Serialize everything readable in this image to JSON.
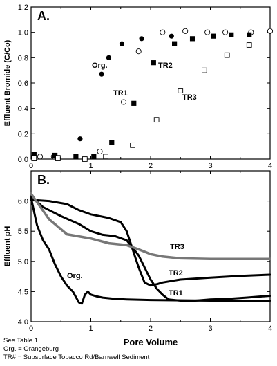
{
  "chart_data": [
    {
      "type": "scatter",
      "panel_label": "A.",
      "title": "",
      "xlabel": "",
      "ylabel": "Effluent Bromide (C/Co)",
      "xlim": [
        0,
        4
      ],
      "ylim": [
        0,
        1.2
      ],
      "xticks": [
        "0",
        "1",
        "2",
        "3",
        "4"
      ],
      "yticks": [
        "0.0",
        "0.2",
        "0.4",
        "0.6",
        "0.8",
        "1.0",
        "1.2"
      ],
      "grid": false,
      "series": [
        {
          "name": "Org.",
          "marker": "filled-circle",
          "points": [
            [
              0.82,
              0.16
            ],
            [
              1.18,
              0.67
            ],
            [
              1.3,
              0.8
            ],
            [
              1.52,
              0.91
            ],
            [
              1.85,
              0.95
            ],
            [
              2.35,
              0.97
            ]
          ]
        },
        {
          "name": "TR1",
          "marker": "open-circle",
          "points": [
            [
              0.15,
              0.02
            ],
            [
              0.38,
              0.02
            ],
            [
              1.15,
              0.06
            ],
            [
              1.55,
              0.45
            ],
            [
              1.8,
              0.85
            ],
            [
              2.2,
              1.0
            ],
            [
              2.58,
              1.01
            ],
            [
              2.95,
              1.0
            ],
            [
              3.25,
              1.0
            ],
            [
              3.68,
              1.0
            ],
            [
              4.0,
              1.01
            ]
          ]
        },
        {
          "name": "TR2",
          "marker": "filled-square",
          "points": [
            [
              0.05,
              0.04
            ],
            [
              0.4,
              0.03
            ],
            [
              0.75,
              0.02
            ],
            [
              1.05,
              0.02
            ],
            [
              1.35,
              0.13
            ],
            [
              1.72,
              0.44
            ],
            [
              2.05,
              0.76
            ],
            [
              2.4,
              0.91
            ],
            [
              2.7,
              0.95
            ],
            [
              3.05,
              0.97
            ],
            [
              3.35,
              0.98
            ],
            [
              3.65,
              0.98
            ]
          ]
        },
        {
          "name": "TR3",
          "marker": "open-square",
          "points": [
            [
              0.05,
              0.01
            ],
            [
              0.45,
              0.01
            ],
            [
              0.9,
              0.0
            ],
            [
              1.25,
              0.02
            ],
            [
              1.7,
              0.11
            ],
            [
              2.1,
              0.31
            ],
            [
              2.5,
              0.54
            ],
            [
              2.9,
              0.7
            ],
            [
              3.28,
              0.82
            ],
            [
              3.65,
              0.9
            ]
          ]
        }
      ],
      "annotations": [
        "Org.",
        "TR1",
        "TR2",
        "TR3"
      ]
    },
    {
      "type": "line",
      "panel_label": "B.",
      "title": "",
      "xlabel": "Pore Volume",
      "ylabel": "Effluent pH",
      "xlim": [
        0,
        4
      ],
      "ylim": [
        4.0,
        6.5
      ],
      "xticks": [
        "0",
        "1",
        "2",
        "3",
        "4"
      ],
      "yticks": [
        "4.0",
        "4.5",
        "5.0",
        "5.5",
        "6.0"
      ],
      "grid": false,
      "series": [
        {
          "name": "Org.",
          "color": "#000000",
          "x": [
            0,
            0.1,
            0.2,
            0.3,
            0.4,
            0.5,
            0.6,
            0.7,
            0.8,
            0.85,
            0.9,
            0.95,
            1.0,
            1.1,
            1.2,
            1.4,
            1.6,
            2.0,
            3.0,
            4.0
          ],
          "y": [
            6.05,
            5.6,
            5.35,
            5.2,
            4.95,
            4.75,
            4.6,
            4.5,
            4.32,
            4.3,
            4.45,
            4.5,
            4.45,
            4.42,
            4.4,
            4.38,
            4.37,
            4.36,
            4.35,
            4.35
          ]
        },
        {
          "name": "TR1",
          "color": "#000000",
          "x": [
            0,
            0.2,
            0.5,
            0.8,
            1.0,
            1.2,
            1.4,
            1.6,
            1.8,
            1.9,
            2.0,
            2.1,
            2.2,
            2.3,
            2.5,
            2.75,
            3.0,
            3.3,
            3.6,
            4.0
          ],
          "y": [
            6.08,
            5.9,
            5.75,
            5.62,
            5.5,
            5.44,
            5.42,
            5.35,
            5.1,
            4.9,
            4.7,
            4.55,
            4.45,
            4.37,
            4.35,
            4.35,
            4.37,
            4.38,
            4.4,
            4.43
          ]
        },
        {
          "name": "TR2",
          "color": "#000000",
          "x": [
            0,
            0.3,
            0.6,
            0.8,
            1.0,
            1.3,
            1.5,
            1.6,
            1.7,
            1.8,
            1.9,
            2.0,
            2.1,
            2.2,
            2.5,
            3.0,
            3.5,
            4.0
          ],
          "y": [
            6.02,
            6.0,
            5.95,
            5.85,
            5.78,
            5.72,
            5.65,
            5.5,
            5.2,
            4.9,
            4.65,
            4.6,
            4.62,
            4.65,
            4.7,
            4.73,
            4.76,
            4.78
          ]
        },
        {
          "name": "TR3",
          "color": "#777777",
          "x": [
            0,
            0.3,
            0.6,
            1.0,
            1.3,
            1.6,
            1.8,
            2.0,
            2.2,
            2.5,
            3.0,
            3.5,
            4.0
          ],
          "y": [
            6.12,
            5.7,
            5.45,
            5.38,
            5.3,
            5.27,
            5.2,
            5.12,
            5.08,
            5.05,
            5.04,
            5.04,
            5.04
          ]
        }
      ],
      "annotations": [
        "Org.",
        "TR1",
        "TR2",
        "TR3"
      ]
    }
  ],
  "notes": [
    "See Table 1.",
    "Org. = Orangeburg",
    "TR# = Subsurface Tobacco Rd/Barnwell Sediment"
  ]
}
